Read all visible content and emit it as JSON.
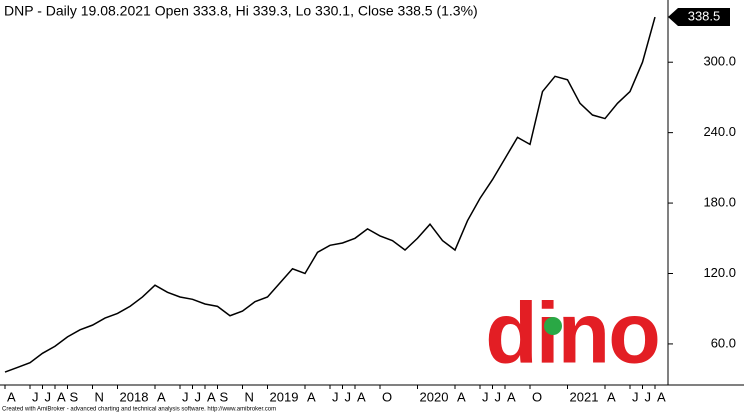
{
  "chart_data": {
    "type": "line",
    "title": "DNP - Daily 19.08.2021 Open 333.8, Hi 339.3, Lo 330.1, Close 338.5 (1.3%)",
    "categories": [
      "A",
      null,
      "J",
      "J",
      "A",
      "S",
      null,
      "N",
      null,
      "2018",
      null,
      null,
      "A",
      null,
      "J",
      "J",
      "A",
      "S",
      null,
      "N",
      null,
      "2019",
      null,
      null,
      "A",
      null,
      "J",
      "J",
      "A",
      null,
      "O",
      null,
      null,
      "2020",
      null,
      null,
      "A",
      null,
      "J",
      "J",
      "A",
      null,
      "O",
      null,
      null,
      "2021",
      null,
      null,
      "A",
      null,
      "J",
      "J",
      "A"
    ],
    "values": [
      36,
      40,
      44,
      52,
      58,
      66,
      72,
      76,
      82,
      86,
      92,
      100,
      110,
      104,
      100,
      98,
      94,
      92,
      84,
      88,
      96,
      100,
      112,
      124,
      120,
      138,
      144,
      146,
      150,
      158,
      152,
      148,
      140,
      150,
      162,
      148,
      140,
      165,
      184,
      200,
      218,
      236,
      230,
      275,
      288,
      285,
      265,
      255,
      252,
      265,
      275,
      300,
      338.5
    ],
    "color": "#000000",
    "ylim": [
      25,
      353
    ],
    "yticks": [
      {
        "value": 60,
        "label": "60.0"
      },
      {
        "value": 120,
        "label": "120.0"
      },
      {
        "value": 180,
        "label": "180.0"
      },
      {
        "value": 240,
        "label": "240.0"
      },
      {
        "value": 300,
        "label": "300.0"
      }
    ],
    "logo": "dino",
    "footnote": "Created with AmiBroker - advanced charting and technical analysis software. http://www.amibroker.com"
  }
}
